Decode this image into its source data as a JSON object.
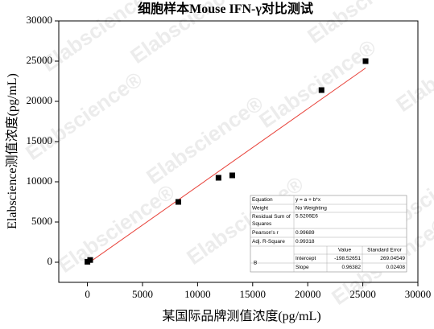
{
  "chart_data": {
    "type": "scatter",
    "title": "细胞样本Mouse IFN-γ对比测试",
    "x_label": "某国际品牌测值浓度(pg/mL)",
    "y_label": "Elabscience测值浓度(pg/mL)",
    "watermark": "Elabscience®",
    "x": [
      0,
      250,
      8250,
      11900,
      13150,
      21250,
      25250
    ],
    "values": [
      60,
      280,
      7500,
      10500,
      10800,
      21400,
      25000
    ],
    "color": "#000000",
    "fit_color": "#e8423a",
    "xlim": [
      -2600,
      30000
    ],
    "ylim": [
      -2500,
      30000
    ],
    "xticks": [
      0,
      5000,
      10000,
      15000,
      20000,
      25000,
      30000
    ],
    "yticks": [
      0,
      5000,
      10000,
      15000,
      20000,
      25000,
      30000
    ],
    "fit_table": {
      "rows": [
        [
          "Equation",
          "y = a + b*x"
        ],
        [
          "Weight",
          "No Weighting"
        ],
        [
          "Residual Sum of Squares",
          "5.5206E6"
        ],
        [
          "Pearson's r",
          0.99689
        ],
        [
          "Adj. R-Square",
          0.99318
        ]
      ],
      "header": [
        "Value",
        "Standard Error"
      ],
      "group": "B",
      "params": [
        {
          "name": "Intercept",
          "value": -198.52651,
          "error": 269.04549
        },
        {
          "name": "Slope",
          "value": 0.96382,
          "error": 0.02408
        }
      ]
    }
  }
}
